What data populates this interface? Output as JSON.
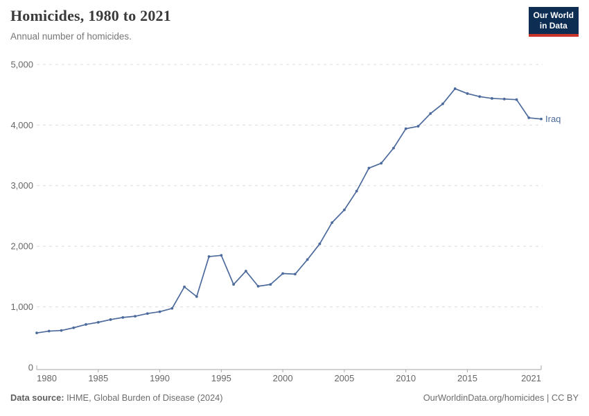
{
  "header": {
    "title": "Homicides, 1980 to 2021",
    "subtitle": "Annual number of homicides."
  },
  "logo": {
    "line1": "Our World",
    "line2": "in Data"
  },
  "footer": {
    "source_label": "Data source:",
    "source_text": " IHME, Global Burden of Disease (2024)",
    "right_text": "OurWorldinData.org/homicides | CC BY"
  },
  "colors": {
    "line": "#4C6A9C",
    "end_label": "#4C6A9C",
    "grid": "#dcdcdc",
    "axis": "#a6a6a6",
    "tick_label": "#666666",
    "logo_bg": "#0d2d52",
    "logo_red": "#c9342a"
  },
  "chart_data": {
    "type": "line",
    "title": "Homicides, 1980 to 2021",
    "subtitle": "Annual number of homicides.",
    "xlabel": "",
    "ylabel": "",
    "xlim": [
      1980,
      2021
    ],
    "ylim": [
      0,
      5000
    ],
    "grid": "horizontal-dashed",
    "legend": "end-of-line-label",
    "x_ticks": [
      1980,
      1985,
      1990,
      1995,
      2000,
      2005,
      2010,
      2015,
      2021
    ],
    "y_ticks": [
      0,
      1000,
      2000,
      3000,
      4000,
      5000
    ],
    "y_tick_labels": [
      "0",
      "1,000",
      "2,000",
      "3,000",
      "4,000",
      "5,000"
    ],
    "x": [
      1980,
      1981,
      1982,
      1983,
      1984,
      1985,
      1986,
      1987,
      1988,
      1989,
      1990,
      1991,
      1992,
      1993,
      1994,
      1995,
      1996,
      1997,
      1998,
      1999,
      2000,
      2001,
      2002,
      2003,
      2004,
      2005,
      2006,
      2007,
      2008,
      2009,
      2010,
      2011,
      2012,
      2013,
      2014,
      2015,
      2016,
      2017,
      2018,
      2019,
      2020,
      2021
    ],
    "series": [
      {
        "name": "Iraq",
        "color": "#4C6A9C",
        "values": [
          570,
          600,
          610,
          655,
          710,
          745,
          790,
          825,
          845,
          890,
          920,
          975,
          1330,
          1170,
          1830,
          1850,
          1370,
          1590,
          1340,
          1370,
          1550,
          1540,
          1780,
          2040,
          2390,
          2600,
          2910,
          3290,
          3370,
          3620,
          3940,
          3980,
          4190,
          4350,
          4600,
          4520,
          4470,
          4440,
          4430,
          4420,
          4120,
          4100
        ]
      }
    ]
  }
}
